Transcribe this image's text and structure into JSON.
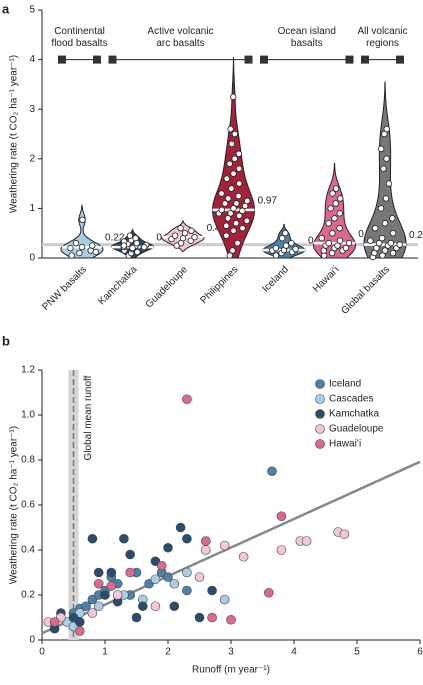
{
  "chart_data": [
    {
      "type": "violin",
      "label": "a",
      "ylabel": "Weathering rate (t CO₂ ha⁻¹ year⁻¹)",
      "ylim": [
        0,
        5
      ],
      "yticks": [
        0,
        1,
        2,
        3,
        4,
        5
      ],
      "categories": [
        "PNW basalts",
        "Kamchatka",
        "Guadeloupe",
        "Philippines",
        "Iceland",
        "Hawaiʻi",
        "Global basalts"
      ],
      "colors": [
        "#a9cde3",
        "#2a4d6e",
        "#f2c6d8",
        "#a3223a",
        "#4f81a8",
        "#d9698f",
        "#777777"
      ],
      "medians": [
        0.22,
        0.22,
        0.42,
        0.97,
        0.16,
        0.3,
        0.27
      ],
      "points": [
        [
          0.05,
          0.1,
          0.15,
          0.2,
          0.22,
          0.25,
          0.3,
          0.77,
          0.12
        ],
        [
          0.05,
          0.1,
          0.12,
          0.15,
          0.18,
          0.2,
          0.22,
          0.24,
          0.26,
          0.28,
          0.3,
          0.33,
          0.36,
          0.4,
          0.45,
          0.2,
          0.22,
          0.25
        ],
        [
          0.25,
          0.3,
          0.35,
          0.38,
          0.4,
          0.42,
          0.45,
          0.5,
          0.55,
          0.6
        ],
        [
          0.05,
          0.15,
          0.3,
          0.45,
          0.55,
          0.6,
          0.65,
          0.7,
          0.75,
          0.8,
          0.85,
          0.9,
          0.9,
          0.95,
          0.97,
          1.0,
          1.05,
          1.1,
          1.1,
          1.15,
          1.2,
          1.25,
          1.3,
          1.4,
          1.5,
          1.6,
          1.7,
          1.8,
          1.9,
          2.0,
          2.1,
          2.3,
          2.5,
          2.6,
          3.25
        ],
        [
          0.05,
          0.1,
          0.12,
          0.15,
          0.16,
          0.18,
          0.2,
          0.25,
          0.3,
          0.4,
          0.5
        ],
        [
          0.05,
          0.1,
          0.15,
          0.15,
          0.2,
          0.2,
          0.25,
          0.25,
          0.3,
          0.3,
          0.35,
          0.4,
          0.5,
          0.6,
          0.7,
          0.8,
          0.9,
          1.0,
          1.1,
          1.2,
          1.3,
          1.4
        ],
        [
          0.02,
          0.05,
          0.1,
          0.1,
          0.15,
          0.2,
          0.2,
          0.25,
          0.27,
          0.3,
          0.3,
          0.35,
          0.4,
          0.5,
          0.6,
          0.7,
          0.8,
          1.0,
          1.2,
          1.5,
          1.8,
          2.0,
          2.2,
          2.5,
          2.6
        ]
      ],
      "groups": [
        {
          "lines": [
            "Continental",
            "flood basalts"
          ],
          "categories": [
            "PNW basalts"
          ]
        },
        {
          "lines": [
            "Active volcanic",
            "arc basalts"
          ],
          "categories": [
            "Kamchatka",
            "Guadeloupe",
            "Philippines"
          ]
        },
        {
          "lines": [
            "Ocean island",
            "basalts"
          ],
          "categories": [
            "Iceland",
            "Hawaiʻi"
          ]
        },
        {
          "lines": [
            "All volcanic",
            "regions"
          ],
          "categories": [
            "Global basalts"
          ]
        }
      ]
    },
    {
      "type": "scatter",
      "label": "b",
      "ylabel": "Weathering rate (t CO₂ ha⁻¹ year⁻¹)",
      "xlabel": "Runoff (m year⁻¹)",
      "xlim": [
        0,
        6
      ],
      "ylim": [
        0,
        1.2
      ],
      "xticks": [
        0,
        1,
        2,
        3,
        4,
        5,
        6
      ],
      "yticks": [
        0,
        0.2,
        0.4,
        0.6,
        0.8,
        {
          "value": 1,
          "label": "1.0"
        },
        1.2
      ],
      "legend": "upper-right",
      "series": [
        {
          "name": "Iceland",
          "color": "#4f81a8",
          "x": [
            0.3,
            0.5,
            0.6,
            0.7,
            0.8,
            0.9,
            1.0,
            1.1,
            1.2,
            1.4,
            1.5,
            1.7,
            1.9,
            2.0,
            2.3,
            3.65
          ],
          "values": [
            0.1,
            0.12,
            0.14,
            0.15,
            0.18,
            0.2,
            0.22,
            0.28,
            0.25,
            0.2,
            0.3,
            0.25,
            0.3,
            0.28,
            0.22,
            0.75
          ]
        },
        {
          "name": "Cascades",
          "color": "#a9cde3",
          "x": [
            0.4,
            0.5,
            0.6,
            0.9,
            1.3,
            1.6,
            1.8,
            2.1,
            2.3,
            2.9
          ],
          "values": [
            0.08,
            0.06,
            0.12,
            0.15,
            0.2,
            0.18,
            0.27,
            0.25,
            0.3,
            0.18
          ]
        },
        {
          "name": "Kamchatka",
          "color": "#2a4d6e",
          "x": [
            0.2,
            0.3,
            0.5,
            0.6,
            0.8,
            0.9,
            1.0,
            1.1,
            1.2,
            1.3,
            1.4,
            1.5,
            1.6,
            1.8,
            2.0,
            2.1,
            2.2,
            2.3,
            2.5,
            2.7
          ],
          "values": [
            0.05,
            0.12,
            0.1,
            0.08,
            0.45,
            0.3,
            0.2,
            0.3,
            0.17,
            0.45,
            0.38,
            0.1,
            0.15,
            0.35,
            0.41,
            0.15,
            0.5,
            0.45,
            0.1,
            0.22
          ]
        },
        {
          "name": "Guadeloupe",
          "color": "#f2c6d8",
          "x": [
            0.1,
            0.3,
            0.8,
            1.2,
            1.8,
            2.5,
            2.6,
            2.9,
            3.2,
            3.8,
            4.1,
            4.2,
            4.7,
            4.8
          ],
          "values": [
            0.08,
            0.1,
            0.12,
            0.2,
            0.15,
            0.28,
            0.4,
            0.42,
            0.37,
            0.4,
            0.44,
            0.44,
            0.48,
            0.47
          ]
        },
        {
          "name": "Hawaiʻi",
          "color": "#d9698f",
          "x": [
            0.2,
            0.6,
            0.9,
            1.1,
            1.4,
            1.9,
            2.3,
            2.6,
            2.7,
            3.0,
            3.6,
            3.8
          ],
          "values": [
            0.08,
            0.04,
            0.25,
            0.24,
            0.3,
            0.33,
            1.07,
            0.44,
            0.1,
            0.09,
            0.21,
            0.55
          ]
        }
      ],
      "fit": {
        "slope": 0.127,
        "intercept": 0.03,
        "color": "#888888"
      },
      "reference": {
        "value": 0.5,
        "band": [
          0.42,
          0.58
        ],
        "label": "Global mean runoff"
      }
    }
  ]
}
